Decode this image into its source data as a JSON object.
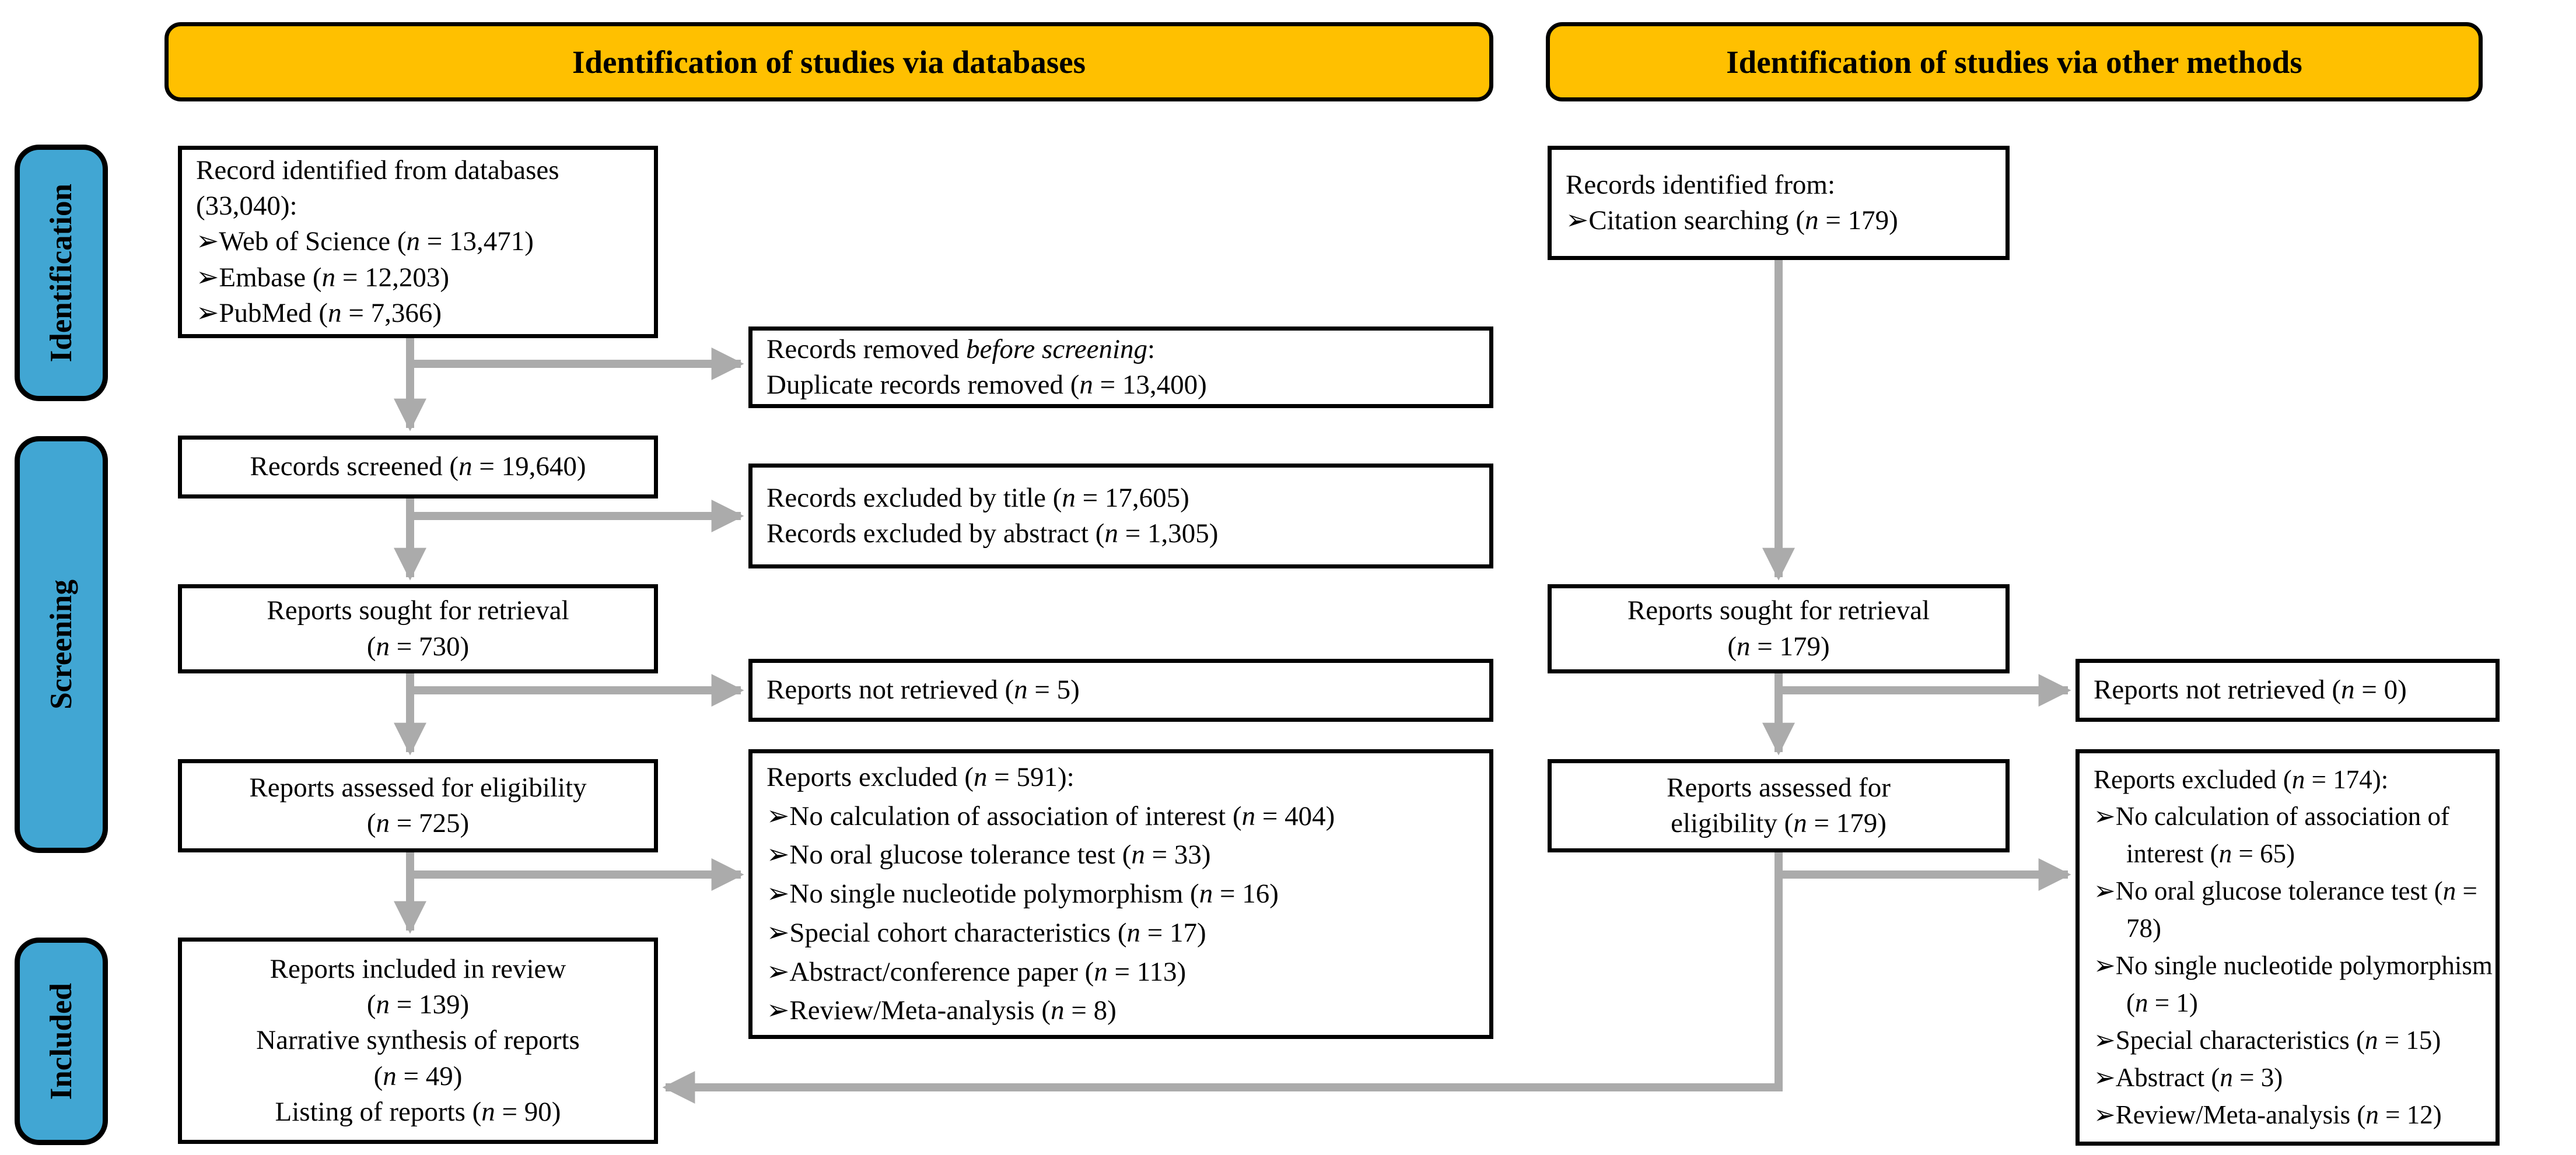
{
  "colors": {
    "header_bg": "#FFC000",
    "sidebar_bg": "#41A6D3",
    "arrow": "#ABABAB",
    "box_border": "#000000",
    "text": "#000000"
  },
  "headers": {
    "databases": "Identification of studies via databases",
    "other_methods": "Identification of studies via other methods"
  },
  "sidebar": {
    "identification": "Identification",
    "screening": "Screening",
    "included": "Included"
  },
  "boxes": {
    "records_identified_databases": {
      "lines": [
        {
          "t": "Record identified from databases (33,040):"
        },
        {
          "t": "➢Web of Science (*n* = 13,471)",
          "b": 1
        },
        {
          "t": "➢Embase (*n* = 12,203)",
          "b": 1
        },
        {
          "t": "➢PubMed (*n* = 7,366)",
          "b": 1
        }
      ]
    },
    "records_removed_before_screening": {
      "lines": [
        {
          "t": "Records removed *before screening*:"
        },
        {
          "t": "Duplicate records removed (*n* = 13,400)"
        }
      ]
    },
    "records_screened": {
      "lines": [
        {
          "t": "Records screened (*n* = 19,640)"
        }
      ]
    },
    "records_excluded_title_abstract": {
      "lines": [
        {
          "t": "Records excluded by title (*n* = 17,605)"
        },
        {
          "t": "Records excluded by abstract (*n* = 1,305)"
        }
      ]
    },
    "reports_sought_databases": {
      "lines": [
        {
          "t": "Reports sought for retrieval"
        },
        {
          "t": "(*n* = 730)"
        }
      ]
    },
    "reports_not_retrieved_databases": {
      "lines": [
        {
          "t": "Reports not retrieved (*n* = 5)"
        }
      ]
    },
    "reports_assessed_databases": {
      "lines": [
        {
          "t": "Reports assessed for eligibility"
        },
        {
          "t": "(*n* = 725)"
        }
      ]
    },
    "reports_excluded_databases": {
      "lines": [
        {
          "t": "Reports excluded (*n* = 591):"
        },
        {
          "t": "➢No calculation of association of interest (*n* = 404)",
          "b": 1
        },
        {
          "t": "➢No oral glucose tolerance test (*n* = 33)",
          "b": 1
        },
        {
          "t": "➢No single nucleotide polymorphism (*n* = 16)",
          "b": 1
        },
        {
          "t": "➢Special cohort characteristics (*n* = 17)",
          "b": 1
        },
        {
          "t": "➢Abstract/conference paper (*n* = 113)",
          "b": 1
        },
        {
          "t": "➢Review/Meta-analysis (*n* = 8)",
          "b": 1
        }
      ]
    },
    "records_identified_other": {
      "lines": [
        {
          "t": "Records identified from:"
        },
        {
          "t": "➢Citation searching (*n* = 179)",
          "b": 1
        }
      ]
    },
    "reports_sought_other": {
      "lines": [
        {
          "t": "Reports sought for retrieval"
        },
        {
          "t": "(*n* = 179)"
        }
      ]
    },
    "reports_not_retrieved_other": {
      "lines": [
        {
          "t": "Reports not retrieved (*n* = 0)"
        }
      ]
    },
    "reports_assessed_other": {
      "lines": [
        {
          "t": "Reports assessed for"
        },
        {
          "t": "eligibility (*n* = 179)"
        }
      ]
    },
    "reports_excluded_other": {
      "lines": [
        {
          "t": "Reports excluded (*n* = 174):"
        },
        {
          "t": "➢No calculation of association of interest (*n* = 65)",
          "b": 1
        },
        {
          "t": "➢No oral glucose tolerance test (*n* = 78)",
          "b": 1
        },
        {
          "t": "➢No single nucleotide polymorphism (*n* = 1)",
          "b": 1
        },
        {
          "t": "➢Special characteristics (*n* = 15)",
          "b": 1
        },
        {
          "t": "➢Abstract (*n* = 3)",
          "b": 1
        },
        {
          "t": "➢Review/Meta-analysis (*n* = 12)",
          "b": 1
        }
      ]
    },
    "included_final": {
      "lines": [
        {
          "t": "Reports included in review"
        },
        {
          "t": "(*n* = 139)"
        },
        {
          "t": "Narrative synthesis of reports"
        },
        {
          "t": "(*n* = 49)"
        },
        {
          "t": "Listing of reports (*n* = 90)"
        }
      ]
    }
  }
}
